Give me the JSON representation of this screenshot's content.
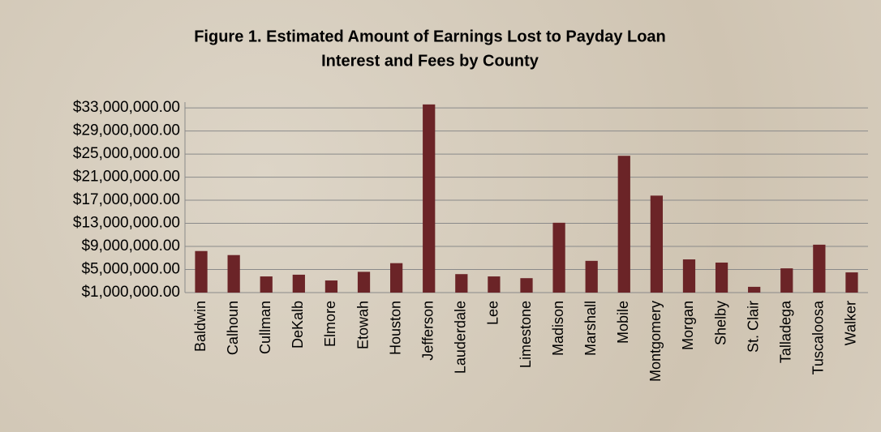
{
  "chart_data": {
    "type": "bar",
    "title": [
      "Figure 1. Estimated Amount of Earnings Lost to Payday Loan",
      "Interest and Fees by County"
    ],
    "categories": [
      "Baldwin",
      "Calhoun",
      "Cullman",
      "DeKalb",
      "Elmore",
      "Etowah",
      "Houston",
      "Jefferson",
      "Lauderdale",
      "Lee",
      "Limestone",
      "Madison",
      "Marshall",
      "Mobile",
      "Montgomery",
      "Morgan",
      "Shelby",
      "St. Clair",
      "Talladega",
      "Tuscaloosa",
      "Walker"
    ],
    "values": [
      8200000,
      7500000,
      3800000,
      4100000,
      3100000,
      4600000,
      6100000,
      33600000,
      4200000,
      3800000,
      3500000,
      13100000,
      6500000,
      24700000,
      17800000,
      6750000,
      6200000,
      2000000,
      5200000,
      9300000,
      4500000
    ],
    "color": "#6b2427",
    "ylim": [
      1000000,
      34000000
    ],
    "yticks": [
      {
        "value": 1000000,
        "label": "$1,000,000.00"
      },
      {
        "value": 5000000,
        "label": "$5,000,000.00"
      },
      {
        "value": 9000000,
        "label": "$9,000,000.00"
      },
      {
        "value": 13000000,
        "label": "$13,000,000.00"
      },
      {
        "value": 17000000,
        "label": "$17,000,000.00"
      },
      {
        "value": 21000000,
        "label": "$21,000,000.00"
      },
      {
        "value": 25000000,
        "label": "$25,000,000.00"
      },
      {
        "value": 29000000,
        "label": "$29,000,000.00"
      },
      {
        "value": 33000000,
        "label": "$33,000,000.00"
      }
    ],
    "grid": true
  }
}
